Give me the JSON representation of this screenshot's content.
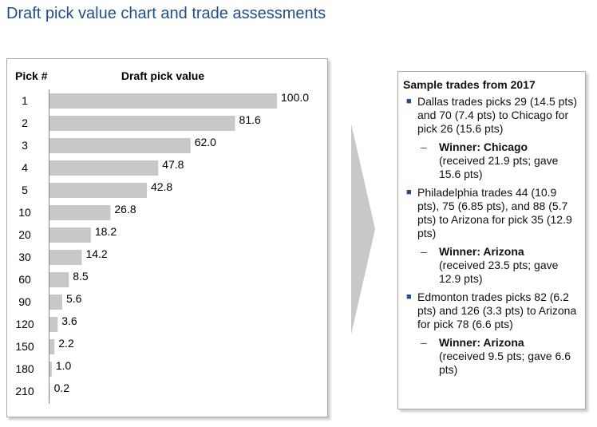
{
  "title": "Draft pick value chart and trade assessments",
  "chart_data": {
    "type": "bar",
    "orientation": "horizontal",
    "category_header": "Pick #",
    "value_header": "Draft pick value",
    "categories": [
      "1",
      "2",
      "3",
      "4",
      "5",
      "10",
      "20",
      "30",
      "60",
      "90",
      "120",
      "150",
      "180",
      "210"
    ],
    "values": [
      100.0,
      81.6,
      62.0,
      47.8,
      42.8,
      26.8,
      18.2,
      14.2,
      8.5,
      5.6,
      3.6,
      2.2,
      1.0,
      0.2
    ],
    "labels": [
      "100.0",
      "81.6",
      "62.0",
      "47.8",
      "42.8",
      "26.8",
      "18.2",
      "14.2",
      "8.5",
      "5.6",
      "3.6",
      "2.2",
      "1.0",
      "0.2"
    ],
    "bar_color": "#c8c8c8",
    "xlim": [
      0,
      100
    ],
    "grid": false
  },
  "trades": {
    "title": "Sample trades from 2017",
    "items": [
      {
        "text": "Dallas trades picks 29 (14.5 pts) and 70 (7.4 pts) to Chicago for pick 26 (15.6 pts)",
        "winner": "Winner: Chicago",
        "detail": "(received 21.9 pts; gave 15.6 pts)"
      },
      {
        "text": "Philadelphia trades 44 (10.9 pts), 75 (6.85 pts), and 88 (5.7 pts) to Arizona for pick 35 (12.9 pts)",
        "winner": "Winner: Arizona",
        "detail": "(received 23.5 pts; gave 12.9 pts)"
      },
      {
        "text": "Edmonton trades picks 82 (6.2 pts) and 126 (3.3 pts) to Arizona for pick 78 (6.6 pts)",
        "winner": "Winner: Arizona",
        "detail": "(received 9.5 pts; gave 6.6 pts)"
      }
    ]
  },
  "colors": {
    "accent": "#1f4e8c",
    "arrow": "#c8c8c8"
  }
}
